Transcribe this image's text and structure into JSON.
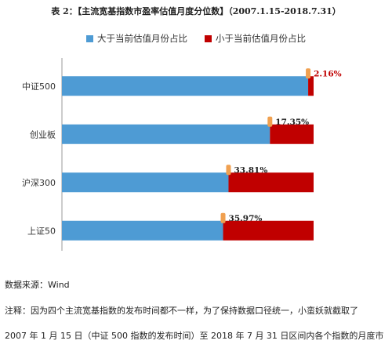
{
  "chart_data": {
    "type": "bar",
    "orientation": "horizontal",
    "stacked": true,
    "percent_stacked": true,
    "title": "表 2：【主流宽基指数市盈率估值月度分位数】（2007.1.15-2018.7.31）",
    "categories": [
      "中证500",
      "创业板",
      "沪深300",
      "上证50"
    ],
    "series": [
      {
        "name": "大于当前估值月份占比",
        "values": [
          97.84,
          82.65,
          66.19,
          64.03
        ],
        "color": "#4E9BD4"
      },
      {
        "name": "小于当前估值月份占比",
        "values": [
          2.16,
          17.35,
          33.81,
          35.97
        ],
        "color": "#C00000"
      }
    ],
    "data_labels": [
      "2.16%",
      "17.35%",
      "33.81%",
      "35.97%"
    ],
    "highlight_label_index": 0,
    "xlim": [
      0,
      100
    ],
    "legend_position": "top",
    "grid": false,
    "marker_color": "#F0A050"
  },
  "notes": {
    "source": "数据来源：Wind",
    "line1": "注释：因为四个主流宽基指数的发布时间都不一样，为了保持数据口径统一，小蛮妖就截取了",
    "line2": "2007 年 1 月 15 日（中证 500 指数的发布时间）至 2018 年 7 月 31 日区间内各个指数的月度市"
  }
}
